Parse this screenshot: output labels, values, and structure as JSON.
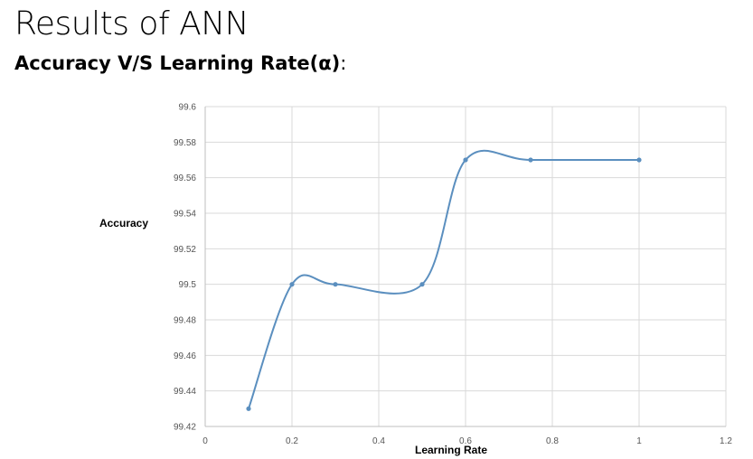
{
  "slide": {
    "title": "Results of ANN",
    "subtitle": "Accuracy V/S Learning Rate(α)",
    "subtitle_suffix": ":"
  },
  "chart_data": {
    "type": "scatter",
    "title": "",
    "xlabel": "Learning Rate",
    "ylabel": "Accuracy",
    "xlim": [
      0,
      1.2
    ],
    "ylim": [
      99.42,
      99.6
    ],
    "x_ticks": [
      "0",
      "0.2",
      "0.4",
      "0.6",
      "0.8",
      "1",
      "1.2"
    ],
    "y_ticks": [
      "99.42",
      "99.44",
      "99.46",
      "99.48",
      "99.5",
      "99.52",
      "99.54",
      "99.56",
      "99.58",
      "99.6"
    ],
    "grid": true,
    "smoothed_line": true,
    "series": [
      {
        "color": "#5b8fbf",
        "points": [
          {
            "x": 0.1,
            "y": 99.43
          },
          {
            "x": 0.2,
            "y": 99.5
          },
          {
            "x": 0.3,
            "y": 99.5
          },
          {
            "x": 0.5,
            "y": 99.5
          },
          {
            "x": 0.6,
            "y": 99.57
          },
          {
            "x": 0.75,
            "y": 99.57
          },
          {
            "x": 1.0,
            "y": 99.57
          }
        ]
      }
    ]
  }
}
